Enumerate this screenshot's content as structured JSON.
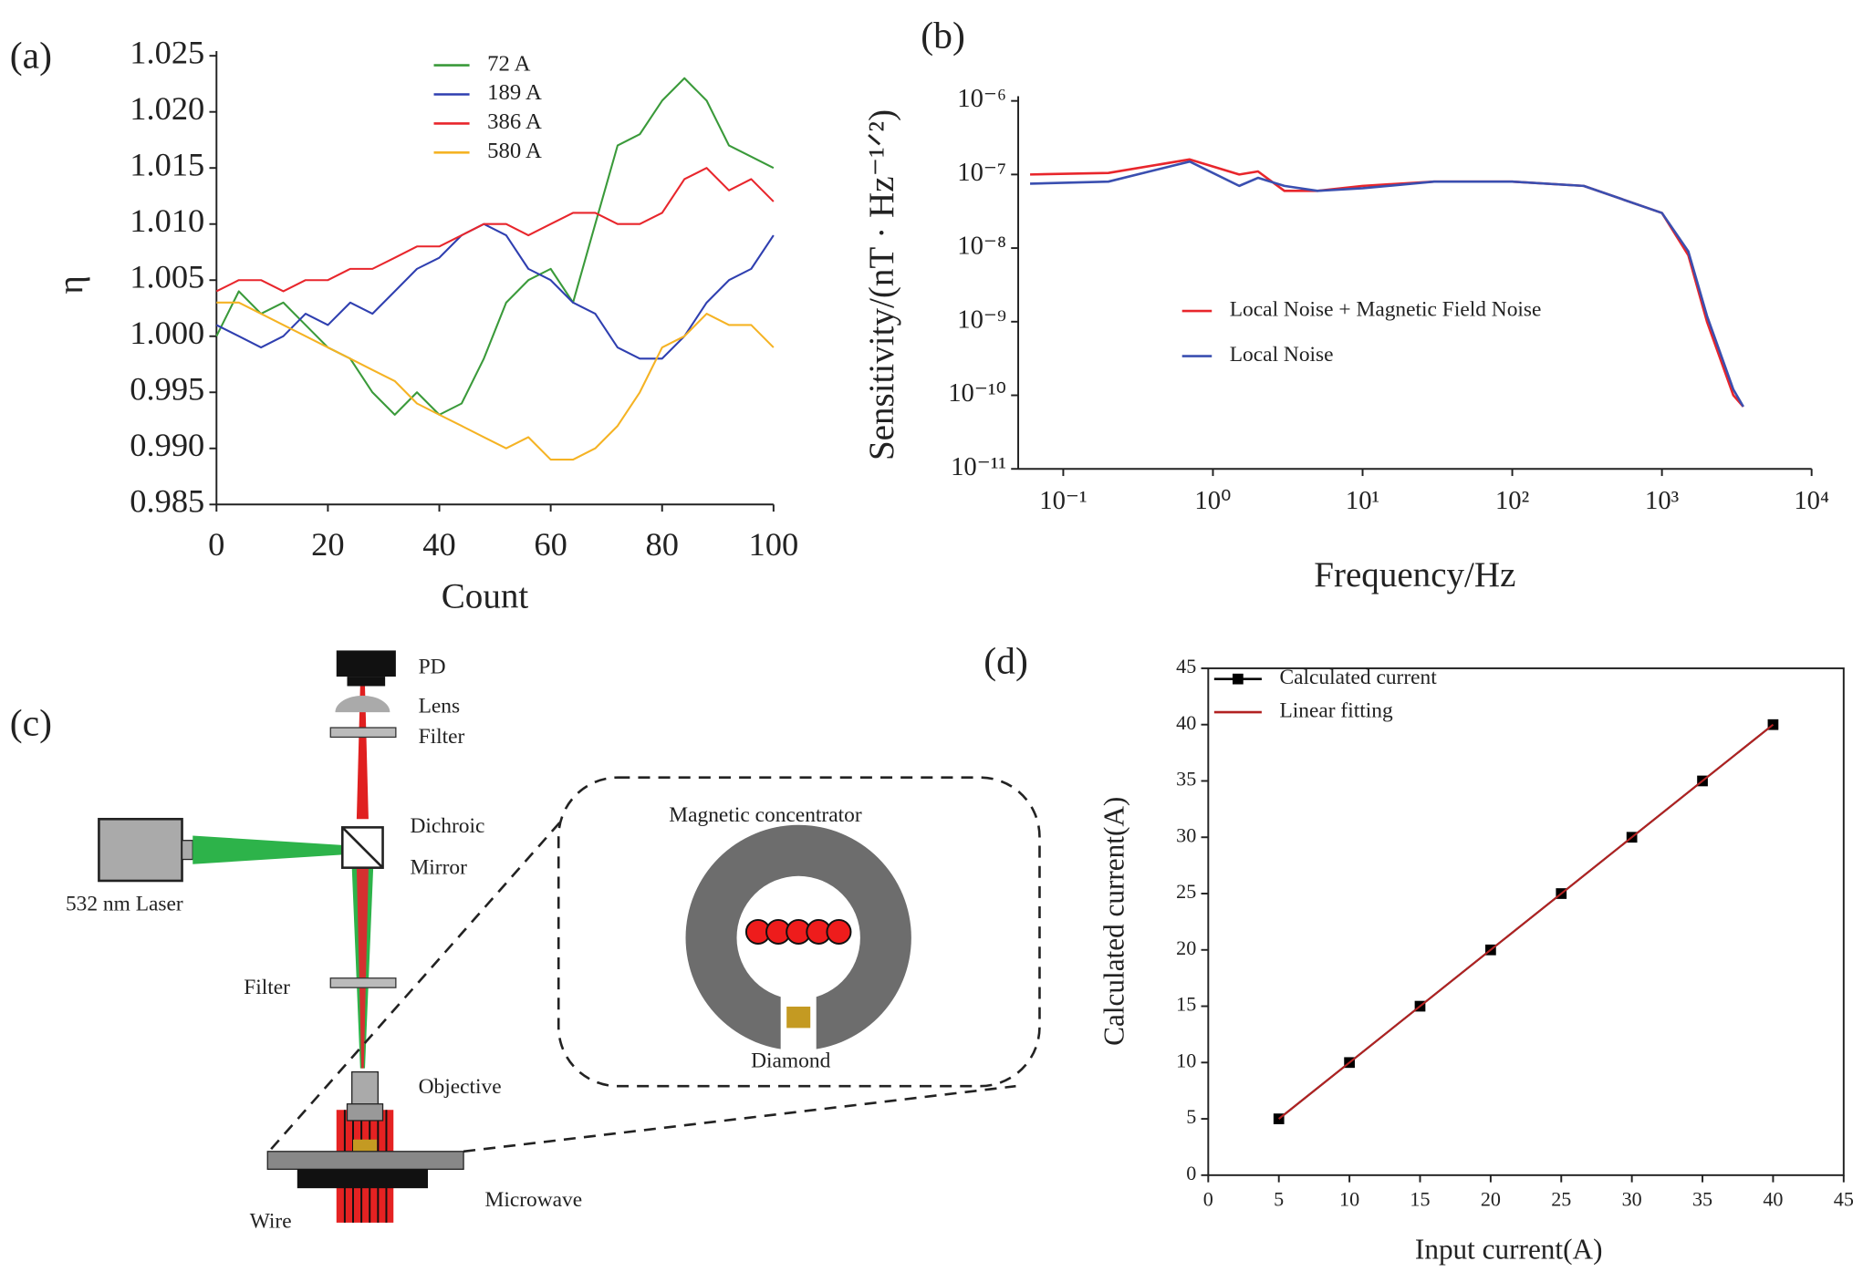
{
  "chart_data": [
    {
      "type": "line",
      "panel_label": "(a)",
      "xlabel": "Count",
      "ylabel": "η",
      "legend": "upper center",
      "x": [
        0,
        4,
        8,
        12,
        16,
        20,
        24,
        28,
        32,
        36,
        40,
        44,
        48,
        52,
        56,
        60,
        64,
        68,
        72,
        76,
        80,
        84,
        88,
        92,
        96,
        100
      ],
      "series": [
        {
          "name": "72 A",
          "color": "#3a9a3a",
          "values": [
            1.0,
            1.004,
            1.002,
            1.003,
            1.001,
            0.999,
            0.998,
            0.995,
            0.993,
            0.995,
            0.993,
            0.994,
            0.998,
            1.003,
            1.005,
            1.006,
            1.003,
            1.01,
            1.017,
            1.018,
            1.021,
            1.023,
            1.021,
            1.017,
            1.016,
            1.015
          ]
        },
        {
          "name": "189 A",
          "color": "#2f3fb0",
          "values": [
            1.001,
            1.0,
            0.999,
            1.0,
            1.002,
            1.001,
            1.003,
            1.002,
            1.004,
            1.006,
            1.007,
            1.009,
            1.01,
            1.009,
            1.006,
            1.005,
            1.003,
            1.002,
            0.999,
            0.998,
            0.998,
            1.0,
            1.003,
            1.005,
            1.006,
            1.009
          ]
        },
        {
          "name": "386 A",
          "color": "#e8262c",
          "values": [
            1.004,
            1.005,
            1.005,
            1.004,
            1.005,
            1.005,
            1.006,
            1.006,
            1.007,
            1.008,
            1.008,
            1.009,
            1.01,
            1.01,
            1.009,
            1.01,
            1.011,
            1.011,
            1.01,
            1.01,
            1.011,
            1.014,
            1.015,
            1.013,
            1.014,
            1.012
          ]
        },
        {
          "name": "580 A",
          "color": "#f5b324",
          "values": [
            1.003,
            1.003,
            1.002,
            1.001,
            1.0,
            0.999,
            0.998,
            0.997,
            0.996,
            0.994,
            0.993,
            0.992,
            0.991,
            0.99,
            0.991,
            0.989,
            0.989,
            0.99,
            0.992,
            0.995,
            0.999,
            1.0,
            1.002,
            1.001,
            1.001,
            0.999
          ]
        }
      ],
      "xlim": [
        0,
        100
      ],
      "xticks": [
        0,
        20,
        40,
        60,
        80,
        100
      ],
      "ylim": [
        0.985,
        1.025
      ],
      "yticks": [
        {
          "value": 0.985,
          "label": "0.985"
        },
        {
          "value": 0.99,
          "label": "0.990"
        },
        0.995,
        {
          "value": 1,
          "label": "1.000"
        },
        1.005,
        {
          "value": 1.01,
          "label": "1.010"
        },
        1.015,
        {
          "value": 1.02,
          "label": "1.020"
        },
        1.025
      ]
    },
    {
      "type": "line",
      "panel_label": "(b)",
      "xlabel": "Frequency/Hz",
      "ylabel": "Sensitivity/(nT · Hz⁻¹ᐟ²)",
      "legend": "center left",
      "log_x": true,
      "log_y": true,
      "x": [
        0.06,
        0.2,
        0.7,
        1.5,
        2,
        3,
        5,
        10,
        30,
        100,
        300,
        1000,
        1500,
        2000,
        3000,
        3500
      ],
      "series": [
        {
          "name": "Local Noise + Magnetic Field Noise",
          "color": "#e8262c",
          "values": [
            1e-07,
            1.05e-07,
            1.6e-07,
            1e-07,
            1.1e-07,
            6e-08,
            6e-08,
            7e-08,
            8e-08,
            8e-08,
            7e-08,
            3e-08,
            8e-09,
            1e-09,
            1e-10,
            7e-11
          ]
        },
        {
          "name": "Local Noise",
          "color": "#3a4fb0",
          "values": [
            7.5e-08,
            8e-08,
            1.5e-07,
            7e-08,
            9e-08,
            7e-08,
            6e-08,
            6.5e-08,
            8e-08,
            8e-08,
            7e-08,
            3e-08,
            9e-09,
            1.2e-09,
            1.2e-10,
            7e-11
          ]
        }
      ],
      "xlim": [
        0.05,
        10000
      ],
      "xticks": [
        {
          "value": 0.1,
          "label": "10⁻¹"
        },
        {
          "value": 1,
          "label": "10⁰"
        },
        {
          "value": 10,
          "label": "10¹"
        },
        {
          "value": 100,
          "label": "10²"
        },
        {
          "value": 1000,
          "label": "10³"
        },
        {
          "value": 10000,
          "label": "10⁴"
        }
      ],
      "ylim": [
        1e-11,
        1e-06
      ],
      "yticks": [
        {
          "value": 1e-11,
          "label": "10⁻¹¹"
        },
        {
          "value": 1e-10,
          "label": "10⁻¹⁰"
        },
        {
          "value": 1e-09,
          "label": "10⁻⁹"
        },
        {
          "value": 1e-08,
          "label": "10⁻⁸"
        },
        {
          "value": 1e-07,
          "label": "10⁻⁷"
        },
        {
          "value": 1e-06,
          "label": "10⁻⁶"
        }
      ]
    },
    {
      "type": "line",
      "panel_label": "(d)",
      "xlabel": "Input current(A)",
      "ylabel": "Calculated current(A)",
      "legend": "upper left",
      "x": [
        5,
        10,
        15,
        20,
        25,
        30,
        35,
        40
      ],
      "series": [
        {
          "name": "Calculated current",
          "color": "#000000",
          "marker": "square",
          "values": [
            5,
            10,
            15,
            20,
            25,
            30,
            35,
            40
          ]
        },
        {
          "name": "Linear fitting",
          "color": "#b22222",
          "values": [
            5,
            10,
            15,
            20,
            25,
            30,
            35,
            40
          ]
        }
      ],
      "xlim": [
        0,
        45
      ],
      "xticks": [
        0,
        5,
        10,
        15,
        20,
        25,
        30,
        35,
        40,
        45
      ],
      "ylim": [
        0,
        45
      ],
      "yticks": [
        0,
        5,
        10,
        15,
        20,
        25,
        30,
        35,
        40,
        45
      ]
    }
  ],
  "diagram": {
    "panel_label": "(c)",
    "labels": [
      "PD",
      "Lens",
      "Filter",
      "Dichroic",
      "Mirror",
      "532 nm Laser",
      "Filter",
      "Objective",
      "Wire",
      "Microwave",
      "Magnetic concentrator",
      "Diamond"
    ]
  }
}
